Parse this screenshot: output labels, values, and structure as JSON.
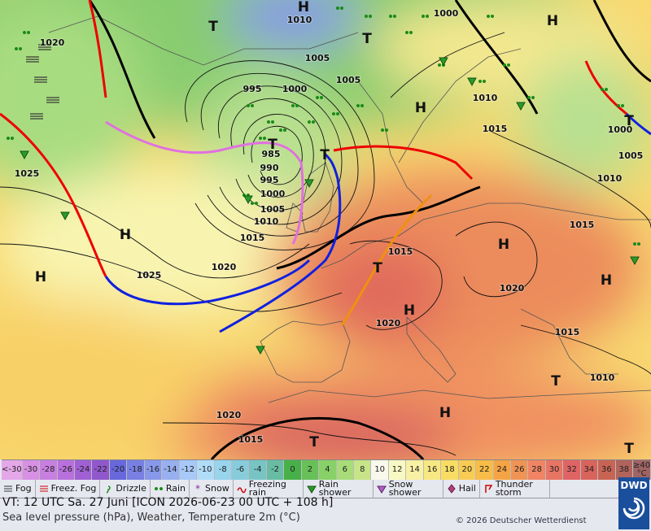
{
  "map": {
    "pressure_labels": [
      "1010",
      "1020",
      "1005",
      "1000",
      "995",
      "1000",
      "1005",
      "1010",
      "1015",
      "985",
      "990",
      "995",
      "1000",
      "1005",
      "1010",
      "1015",
      "1025",
      "1025",
      "1020",
      "1015",
      "1020",
      "1020",
      "1015",
      "1010",
      "1020",
      "1015",
      "1000",
      "1005",
      "1010",
      "1015"
    ],
    "pressure_systems": [
      "H",
      "T",
      "T",
      "H",
      "H",
      "T",
      "T",
      "T",
      "H",
      "H",
      "T",
      "H",
      "H",
      "H",
      "T",
      "H",
      "T",
      "T"
    ]
  },
  "legend": {
    "temperature_scale": [
      {
        "label": "<-30",
        "color": "#e4a8e8"
      },
      {
        "label": "-30",
        "color": "#d890e4"
      },
      {
        "label": "-28",
        "color": "#c880e0"
      },
      {
        "label": "-26",
        "color": "#b870dc"
      },
      {
        "label": "-24",
        "color": "#a060d4"
      },
      {
        "label": "-22",
        "color": "#9058cc"
      },
      {
        "label": "-20",
        "color": "#6868dc"
      },
      {
        "label": "-18",
        "color": "#7880e4"
      },
      {
        "label": "-16",
        "color": "#8898ea"
      },
      {
        "label": "-14",
        "color": "#98b0f0"
      },
      {
        "label": "-12",
        "color": "#a8c8f8"
      },
      {
        "label": "-10",
        "color": "#b0dcf8"
      },
      {
        "label": "-8",
        "color": "#98d4ec"
      },
      {
        "label": "-6",
        "color": "#88ccdc"
      },
      {
        "label": "-4",
        "color": "#78c4c4"
      },
      {
        "label": "-2",
        "color": "#68bca4"
      },
      {
        "label": "0",
        "color": "#48b048"
      },
      {
        "label": "2",
        "color": "#68c058"
      },
      {
        "label": "4",
        "color": "#88d068"
      },
      {
        "label": "6",
        "color": "#a8dc78"
      },
      {
        "label": "8",
        "color": "#c8e488"
      },
      {
        "label": "10",
        "color": "#f8f8ec"
      },
      {
        "label": "12",
        "color": "#f8f8c4"
      },
      {
        "label": "14",
        "color": "#f8f0a4"
      },
      {
        "label": "16",
        "color": "#f8e884"
      },
      {
        "label": "18",
        "color": "#f8dc64"
      },
      {
        "label": "20",
        "color": "#f8cc54"
      },
      {
        "label": "22",
        "color": "#f8bc48"
      },
      {
        "label": "24",
        "color": "#f4a444"
      },
      {
        "label": "26",
        "color": "#f09454"
      },
      {
        "label": "28",
        "color": "#f08464"
      },
      {
        "label": "30",
        "color": "#e87464"
      },
      {
        "label": "32",
        "color": "#e06464"
      },
      {
        "label": "34",
        "color": "#d8645c"
      },
      {
        "label": "36",
        "color": "#c86454"
      },
      {
        "label": "38",
        "color": "#b0645c"
      },
      {
        "label": "≥40 °C",
        "color": "#a06464"
      }
    ],
    "weather_symbols": [
      "Fog",
      "Freez. Fog",
      "Drizzle",
      "Rain",
      "Snow",
      "Freezing rain",
      "Rain shower",
      "Snow shower",
      "Hail",
      "Thunder storm"
    ]
  },
  "footer": {
    "valid_time": "VT: 12 UTC Sa.  27 Juni [ICON 2026-06-23  00 UTC + 108 h]",
    "description": "Sea level pressure (hPa), Weather, Temperature 2m (°C)",
    "copyright": "© 2026 Deutscher Wetterdienst",
    "logo": "DWD"
  }
}
